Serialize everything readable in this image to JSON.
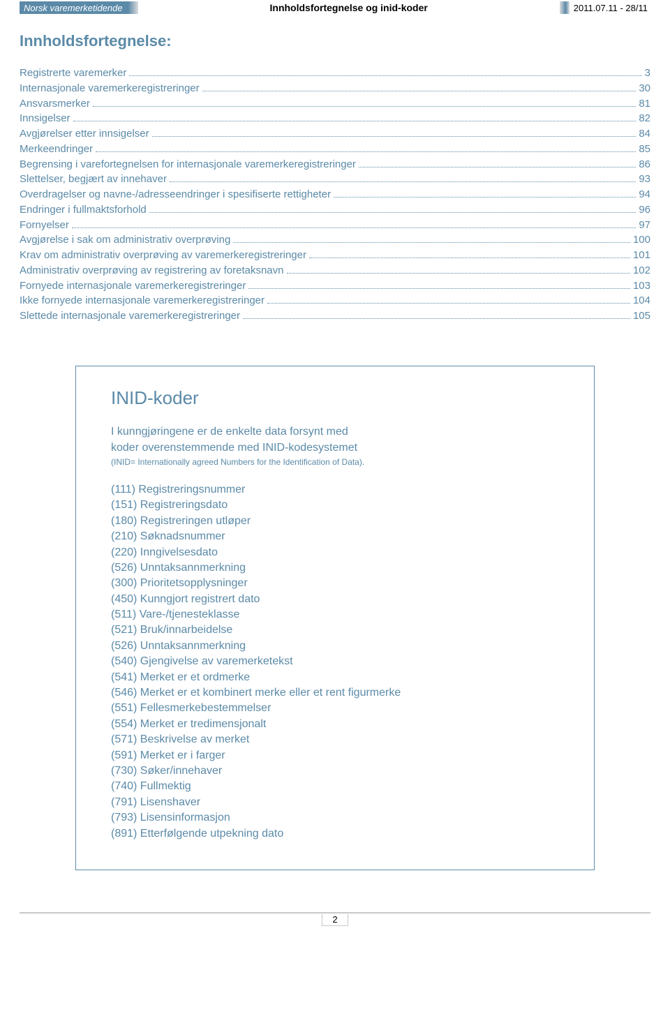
{
  "header": {
    "brand": "Norsk varemerketidende",
    "center_title": "Innholdsfortegnelse og inid-koder",
    "issue": "2011.07.11 - 28/11"
  },
  "main_title": "Innholdsfortegnelse:",
  "toc": [
    {
      "label": "Registrerte varemerker",
      "page": "3"
    },
    {
      "label": "Internasjonale varemerkeregistreringer",
      "page": "30"
    },
    {
      "label": "Ansvarsmerker",
      "page": "81"
    },
    {
      "label": "Innsigelser",
      "page": "82"
    },
    {
      "label": "Avgjørelser etter innsigelser",
      "page": "84"
    },
    {
      "label": "Merkeendringer",
      "page": "85"
    },
    {
      "label": "Begrensing i varefortegnelsen for internasjonale varemerkeregistreringer",
      "page": "86"
    },
    {
      "label": "Slettelser, begjært av innehaver",
      "page": "93"
    },
    {
      "label": "Overdragelser og navne-/adresseendringer i spesifiserte rettigheter",
      "page": "94"
    },
    {
      "label": "Endringer i fullmaktsforhold",
      "page": "96"
    },
    {
      "label": "Fornyelser",
      "page": "97"
    },
    {
      "label": "Avgjørelse i sak om administrativ overprøving",
      "page": "100"
    },
    {
      "label": "Krav om administrativ overprøving av varemerkeregistreringer",
      "page": "101"
    },
    {
      "label": "Administrativ overprøving av registrering av foretaksnavn",
      "page": "102"
    },
    {
      "label": "Fornyede internasjonale varemerkeregistreringer",
      "page": "103"
    },
    {
      "label": "Ikke fornyede internasjonale varemerkeregistreringer",
      "page": "104"
    },
    {
      "label": "Slettede internasjonale varemerkeregistreringer",
      "page": "105"
    }
  ],
  "inid": {
    "title": "INID-koder",
    "intro_line1": "I kunngjøringene er de enkelte data forsynt med",
    "intro_line2": "koder overenstemmende med INID-kodesystemet",
    "intro_sub": "(INID= Internationally agreed Numbers for the Identification of Data).",
    "codes": [
      "(111) Registreringsnummer",
      "(151) Registreringsdato",
      "(180) Registreringen utløper",
      "(210) Søknadsnummer",
      "(220) Inngivelsesdato",
      "(526) Unntaksannmerkning",
      "(300) Prioritetsopplysninger",
      "(450) Kunngjort registrert dato",
      "(511) Vare-/tjenesteklasse",
      "(521) Bruk/innarbeidelse",
      "(526) Unntaksannmerkning",
      "(540) Gjengivelse av varemerketekst",
      "(541) Merket er et ordmerke",
      "(546) Merket er et kombinert merke eller et rent figurmerke",
      "(551) Fellesmerkebestemmelser",
      "(554) Merket er tredimensjonalt",
      "(571) Beskrivelse av merket",
      "(591) Merket er i farger",
      "(730) Søker/innehaver",
      "(740) Fullmektig",
      "(791) Lisenshaver",
      "(793) Lisensinformasjon",
      "(891) Etterfølgende utpekning dato"
    ]
  },
  "footer": {
    "page_number": "2"
  },
  "colors": {
    "accent": "#5b8aa8",
    "text": "#000000",
    "background": "#ffffff",
    "footer_line": "#c8c8c8"
  }
}
